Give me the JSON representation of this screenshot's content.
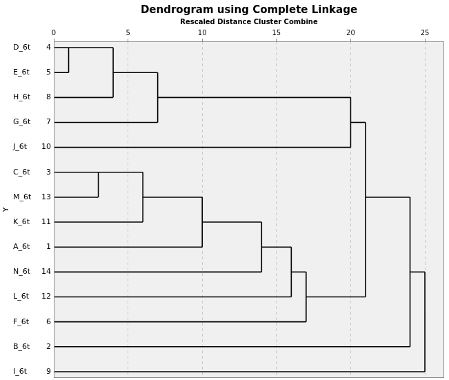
{
  "chart_data": {
    "type": "dendrogram",
    "title": "Dendrogram using Complete Linkage",
    "subtitle": "Rescaled Distance Cluster Combine",
    "y_label": "Y",
    "xlim": [
      0,
      26.3
    ],
    "xticks": [
      0,
      5,
      10,
      15,
      20,
      25
    ],
    "grid": true,
    "color": "#000000",
    "tree": {
      "height": 25,
      "children": [
        {
          "height": 24,
          "children": [
            {
              "height": 21,
              "children": [
                {
                  "height": 20,
                  "children": [
                    {
                      "height": 7,
                      "children": [
                        {
                          "height": 4,
                          "children": [
                            {
                              "height": 1,
                              "children": [
                                {
                                  "label": "D_6t",
                                  "case": 4
                                },
                                {
                                  "label": "E_6t",
                                  "case": 5
                                }
                              ]
                            },
                            {
                              "label": "H_6t",
                              "case": 8
                            }
                          ]
                        },
                        {
                          "label": "G_6t",
                          "case": 7
                        }
                      ]
                    },
                    {
                      "label": "J_6t",
                      "case": 10
                    }
                  ]
                },
                {
                  "height": 17,
                  "children": [
                    {
                      "height": 16,
                      "children": [
                        {
                          "height": 14,
                          "children": [
                            {
                              "height": 10,
                              "children": [
                                {
                                  "height": 6,
                                  "children": [
                                    {
                                      "height": 3,
                                      "children": [
                                        {
                                          "label": "C_6t",
                                          "case": 3
                                        },
                                        {
                                          "label": "M_6t",
                                          "case": 13
                                        }
                                      ]
                                    },
                                    {
                                      "label": "K_6t",
                                      "case": 11
                                    }
                                  ]
                                },
                                {
                                  "label": "A_6t",
                                  "case": 1
                                }
                              ]
                            },
                            {
                              "label": "N_6t",
                              "case": 14
                            }
                          ]
                        },
                        {
                          "label": "L_6t",
                          "case": 12
                        }
                      ]
                    },
                    {
                      "label": "F_6t",
                      "case": 6
                    }
                  ]
                }
              ]
            },
            {
              "label": "B_6t",
              "case": 2
            }
          ]
        },
        {
          "label": "I_6t",
          "case": 9
        }
      ]
    }
  }
}
